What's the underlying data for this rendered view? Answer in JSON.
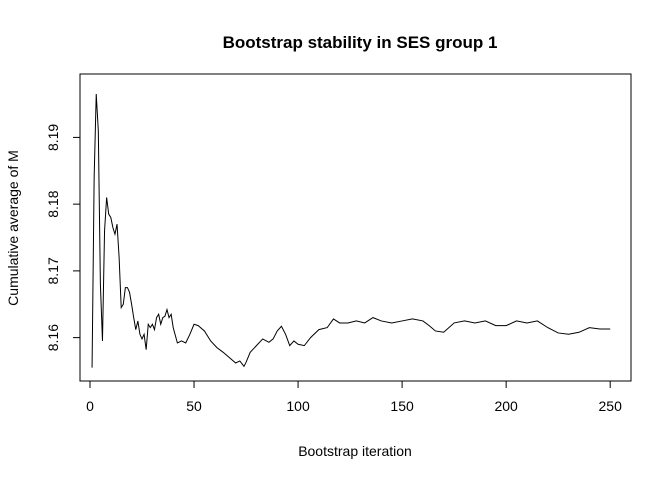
{
  "chart_data": {
    "type": "line",
    "title": "Bootstrap stability in SES group 1",
    "xlabel": "Bootstrap iteration",
    "ylabel": "Cumulative average of M",
    "xlim": [
      -4.8,
      260
    ],
    "ylim": [
      8.1535,
      8.1995
    ],
    "xticks": [
      0,
      50,
      100,
      150,
      200,
      250
    ],
    "yticks": [
      8.16,
      8.17,
      8.18,
      8.19
    ],
    "grid": false,
    "legend": "none",
    "line_color": "#000000",
    "series": [
      {
        "x": [
          1,
          2,
          3,
          4,
          5,
          6,
          7,
          8,
          9,
          10,
          11,
          12,
          13,
          14,
          15,
          16,
          17,
          18,
          19,
          20,
          21,
          22,
          23,
          24,
          25,
          26,
          27,
          28,
          29,
          30,
          31,
          32,
          33,
          34,
          35,
          36,
          37,
          38,
          39,
          40,
          42,
          44,
          46,
          48,
          50,
          52,
          55,
          58,
          61,
          64,
          67,
          70,
          72,
          74,
          75,
          77,
          80,
          83,
          86,
          88,
          90,
          92,
          94,
          96,
          98,
          100,
          103,
          106,
          110,
          114,
          117,
          120,
          124,
          128,
          132,
          136,
          140,
          145,
          150,
          155,
          160,
          163,
          166,
          170,
          175,
          180,
          185,
          190,
          195,
          200,
          205,
          210,
          215,
          220,
          225,
          230,
          235,
          240,
          245,
          250
        ],
        "y": [
          8.1555,
          8.184,
          8.1965,
          8.191,
          8.168,
          8.1595,
          8.176,
          8.181,
          8.1785,
          8.178,
          8.1765,
          8.1755,
          8.177,
          8.172,
          8.1645,
          8.165,
          8.1675,
          8.1675,
          8.1668,
          8.165,
          8.163,
          8.1612,
          8.1625,
          8.1605,
          8.1598,
          8.1605,
          8.1582,
          8.162,
          8.1615,
          8.162,
          8.1612,
          8.163,
          8.1635,
          8.162,
          8.163,
          8.1632,
          8.1642,
          8.163,
          8.1635,
          8.1615,
          8.1592,
          8.1595,
          8.1592,
          8.1605,
          8.162,
          8.1618,
          8.161,
          8.1595,
          8.1585,
          8.1578,
          8.157,
          8.1562,
          8.1565,
          8.1557,
          8.1563,
          8.1578,
          8.1588,
          8.1598,
          8.1593,
          8.1598,
          8.161,
          8.1617,
          8.1605,
          8.1588,
          8.1595,
          8.159,
          8.1588,
          8.16,
          8.1612,
          8.1615,
          8.1628,
          8.1622,
          8.1622,
          8.1625,
          8.1622,
          8.163,
          8.1625,
          8.1622,
          8.1625,
          8.1628,
          8.1625,
          8.1618,
          8.161,
          8.1608,
          8.1622,
          8.1625,
          8.1622,
          8.1625,
          8.1618,
          8.1618,
          8.1625,
          8.1622,
          8.1625,
          8.1615,
          8.1607,
          8.1605,
          8.1608,
          8.1615,
          8.1613,
          8.1613
        ]
      }
    ]
  }
}
